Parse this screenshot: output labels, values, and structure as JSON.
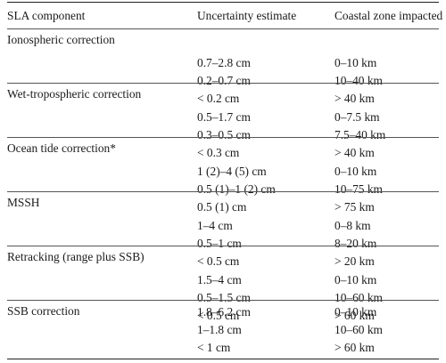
{
  "header": {
    "col1": "SLA component",
    "col2": "Uncertainty estimate",
    "col3": "Coastal zone impacted"
  },
  "rows": [
    {
      "component": "Ionospheric correction",
      "uncertainty": [
        "0.7–2.8 cm",
        "0.2–0.7 cm",
        "< 0.2 cm"
      ],
      "zone": [
        "0–10 km",
        "10–40 km",
        "> 40 km"
      ]
    },
    {
      "component": "Wet-tropospheric correction",
      "uncertainty": [
        "0.5–1.7 cm",
        "0.3–0.5 cm",
        "< 0.3 cm"
      ],
      "zone": [
        "0–7.5 km",
        "7.5–40 km",
        "> 40 km"
      ]
    },
    {
      "component": "Ocean tide correction*",
      "uncertainty": [
        "1 (2)–4 (5) cm",
        "0.5 (1)–1 (2) cm",
        "0.5 (1) cm"
      ],
      "zone": [
        "0–10 km",
        "10–75 km",
        "> 75 km"
      ]
    },
    {
      "component": "MSSH",
      "uncertainty": [
        "1–4 cm",
        "0.5–1 cm",
        "< 0.5 cm"
      ],
      "zone": [
        "0–8 km",
        "8–20 km",
        "> 20 km"
      ]
    },
    {
      "component": "Retracking (range plus SSB)",
      "uncertainty": [
        "1.5–4 cm",
        "0.5–1.5 cm",
        "< 0.5 cm"
      ],
      "zone": [
        "0–10 km",
        "10–60 km",
        "> 60 km"
      ]
    },
    {
      "component": "SSB correction",
      "uncertainty": [
        "1.8–6.2 cm",
        "1–1.8 cm",
        "< 1 cm"
      ],
      "zone": [
        "0–10 km",
        "10–60 km",
        "> 60 km"
      ]
    }
  ]
}
